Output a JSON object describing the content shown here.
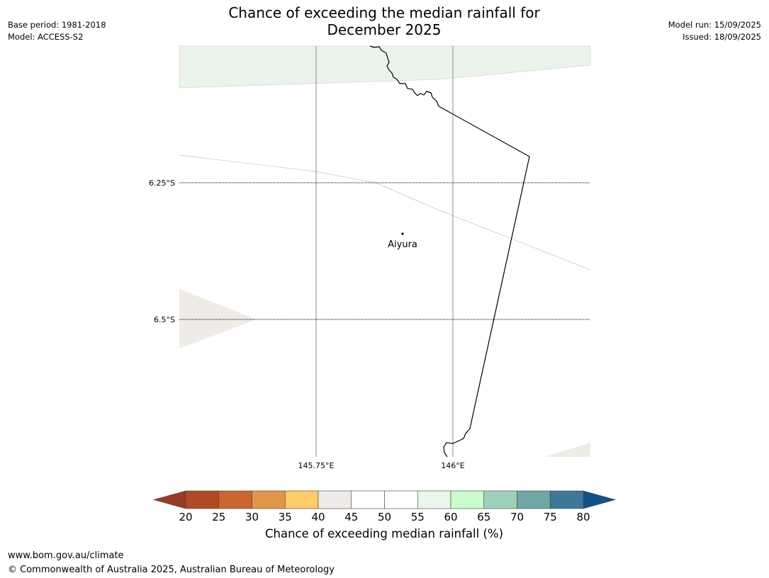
{
  "header": {
    "title_line1": "Chance of exceeding the median rainfall for",
    "title_line2": "December 2025",
    "base_period": "Base period: 1981-2018",
    "model": "Model: ACCESS-S2",
    "model_run": "Model run: 15/09/2025",
    "issued": "Issued: 18/09/2025"
  },
  "map": {
    "lat_labels": [
      "6.25°S",
      "6.5°S"
    ],
    "lon_labels": [
      "145.75°E",
      "146°E"
    ],
    "place": {
      "name": "Aiyura"
    }
  },
  "colorbar": {
    "label": "Chance of exceeding median rainfall (%)",
    "ticks": [
      "20",
      "25",
      "30",
      "35",
      "40",
      "45",
      "50",
      "55",
      "60",
      "65",
      "70",
      "75",
      "80"
    ],
    "low_color": "#9a3a22",
    "high_color": "#14508a",
    "colors": [
      "#b34a25",
      "#cc6531",
      "#e3954a",
      "#fecb67",
      "#f0ebe6",
      "#ffffff",
      "#ffffff",
      "#eaf6ea",
      "#c9fcc8",
      "#9ed1b9",
      "#6fa6a6",
      "#3e7898"
    ]
  },
  "footer": {
    "url": "www.bom.gov.au/climate",
    "copyright": "© Commonwealth of Australia 2025, Australian Bureau of Meteorology"
  }
}
